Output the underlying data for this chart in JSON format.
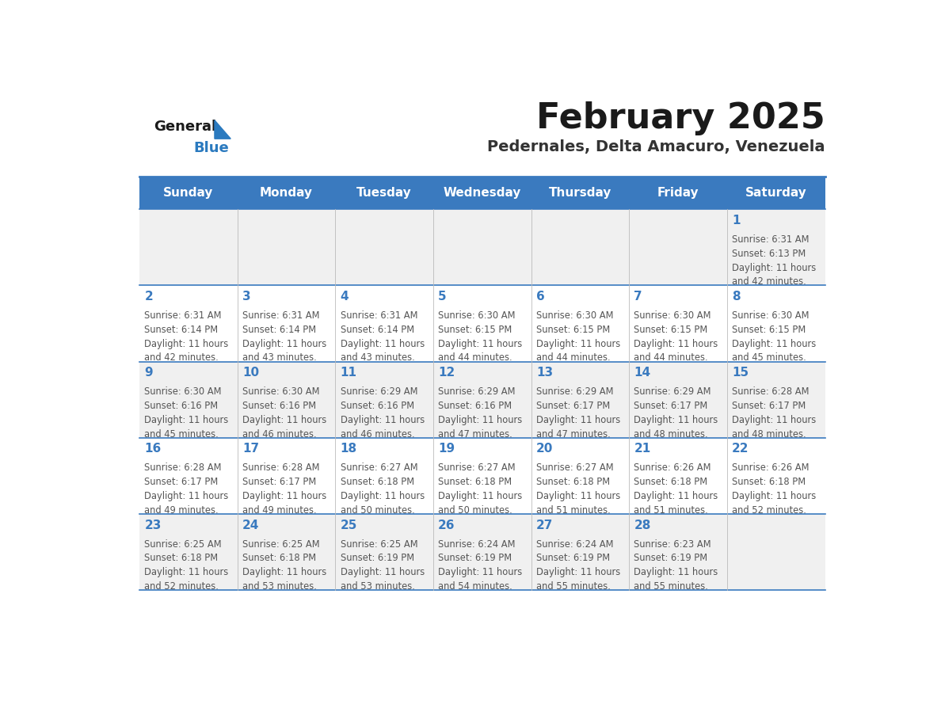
{
  "title": "February 2025",
  "subtitle": "Pedernales, Delta Amacuro, Venezuela",
  "header_color": "#3a7abf",
  "header_text_color": "#ffffff",
  "day_names": [
    "Sunday",
    "Monday",
    "Tuesday",
    "Wednesday",
    "Thursday",
    "Friday",
    "Saturday"
  ],
  "bg_color": "#ffffff",
  "cell_bg_even": "#f0f0f0",
  "cell_bg_odd": "#ffffff",
  "border_color": "#3a7abf",
  "day_num_color": "#3a7abf",
  "text_color": "#555555",
  "logo_general_color": "#1a1a1a",
  "logo_blue_color": "#2b7abf",
  "days": [
    {
      "date": 1,
      "col": 6,
      "row": 0,
      "sunrise": "6:31 AM",
      "sunset": "6:13 PM",
      "daylight": "11 hours and 42 minutes."
    },
    {
      "date": 2,
      "col": 0,
      "row": 1,
      "sunrise": "6:31 AM",
      "sunset": "6:14 PM",
      "daylight": "11 hours and 42 minutes."
    },
    {
      "date": 3,
      "col": 1,
      "row": 1,
      "sunrise": "6:31 AM",
      "sunset": "6:14 PM",
      "daylight": "11 hours and 43 minutes."
    },
    {
      "date": 4,
      "col": 2,
      "row": 1,
      "sunrise": "6:31 AM",
      "sunset": "6:14 PM",
      "daylight": "11 hours and 43 minutes."
    },
    {
      "date": 5,
      "col": 3,
      "row": 1,
      "sunrise": "6:30 AM",
      "sunset": "6:15 PM",
      "daylight": "11 hours and 44 minutes."
    },
    {
      "date": 6,
      "col": 4,
      "row": 1,
      "sunrise": "6:30 AM",
      "sunset": "6:15 PM",
      "daylight": "11 hours and 44 minutes."
    },
    {
      "date": 7,
      "col": 5,
      "row": 1,
      "sunrise": "6:30 AM",
      "sunset": "6:15 PM",
      "daylight": "11 hours and 44 minutes."
    },
    {
      "date": 8,
      "col": 6,
      "row": 1,
      "sunrise": "6:30 AM",
      "sunset": "6:15 PM",
      "daylight": "11 hours and 45 minutes."
    },
    {
      "date": 9,
      "col": 0,
      "row": 2,
      "sunrise": "6:30 AM",
      "sunset": "6:16 PM",
      "daylight": "11 hours and 45 minutes."
    },
    {
      "date": 10,
      "col": 1,
      "row": 2,
      "sunrise": "6:30 AM",
      "sunset": "6:16 PM",
      "daylight": "11 hours and 46 minutes."
    },
    {
      "date": 11,
      "col": 2,
      "row": 2,
      "sunrise": "6:29 AM",
      "sunset": "6:16 PM",
      "daylight": "11 hours and 46 minutes."
    },
    {
      "date": 12,
      "col": 3,
      "row": 2,
      "sunrise": "6:29 AM",
      "sunset": "6:16 PM",
      "daylight": "11 hours and 47 minutes."
    },
    {
      "date": 13,
      "col": 4,
      "row": 2,
      "sunrise": "6:29 AM",
      "sunset": "6:17 PM",
      "daylight": "11 hours and 47 minutes."
    },
    {
      "date": 14,
      "col": 5,
      "row": 2,
      "sunrise": "6:29 AM",
      "sunset": "6:17 PM",
      "daylight": "11 hours and 48 minutes."
    },
    {
      "date": 15,
      "col": 6,
      "row": 2,
      "sunrise": "6:28 AM",
      "sunset": "6:17 PM",
      "daylight": "11 hours and 48 minutes."
    },
    {
      "date": 16,
      "col": 0,
      "row": 3,
      "sunrise": "6:28 AM",
      "sunset": "6:17 PM",
      "daylight": "11 hours and 49 minutes."
    },
    {
      "date": 17,
      "col": 1,
      "row": 3,
      "sunrise": "6:28 AM",
      "sunset": "6:17 PM",
      "daylight": "11 hours and 49 minutes."
    },
    {
      "date": 18,
      "col": 2,
      "row": 3,
      "sunrise": "6:27 AM",
      "sunset": "6:18 PM",
      "daylight": "11 hours and 50 minutes."
    },
    {
      "date": 19,
      "col": 3,
      "row": 3,
      "sunrise": "6:27 AM",
      "sunset": "6:18 PM",
      "daylight": "11 hours and 50 minutes."
    },
    {
      "date": 20,
      "col": 4,
      "row": 3,
      "sunrise": "6:27 AM",
      "sunset": "6:18 PM",
      "daylight": "11 hours and 51 minutes."
    },
    {
      "date": 21,
      "col": 5,
      "row": 3,
      "sunrise": "6:26 AM",
      "sunset": "6:18 PM",
      "daylight": "11 hours and 51 minutes."
    },
    {
      "date": 22,
      "col": 6,
      "row": 3,
      "sunrise": "6:26 AM",
      "sunset": "6:18 PM",
      "daylight": "11 hours and 52 minutes."
    },
    {
      "date": 23,
      "col": 0,
      "row": 4,
      "sunrise": "6:25 AM",
      "sunset": "6:18 PM",
      "daylight": "11 hours and 52 minutes."
    },
    {
      "date": 24,
      "col": 1,
      "row": 4,
      "sunrise": "6:25 AM",
      "sunset": "6:18 PM",
      "daylight": "11 hours and 53 minutes."
    },
    {
      "date": 25,
      "col": 2,
      "row": 4,
      "sunrise": "6:25 AM",
      "sunset": "6:19 PM",
      "daylight": "11 hours and 53 minutes."
    },
    {
      "date": 26,
      "col": 3,
      "row": 4,
      "sunrise": "6:24 AM",
      "sunset": "6:19 PM",
      "daylight": "11 hours and 54 minutes."
    },
    {
      "date": 27,
      "col": 4,
      "row": 4,
      "sunrise": "6:24 AM",
      "sunset": "6:19 PM",
      "daylight": "11 hours and 55 minutes."
    },
    {
      "date": 28,
      "col": 5,
      "row": 4,
      "sunrise": "6:23 AM",
      "sunset": "6:19 PM",
      "daylight": "11 hours and 55 minutes."
    }
  ]
}
